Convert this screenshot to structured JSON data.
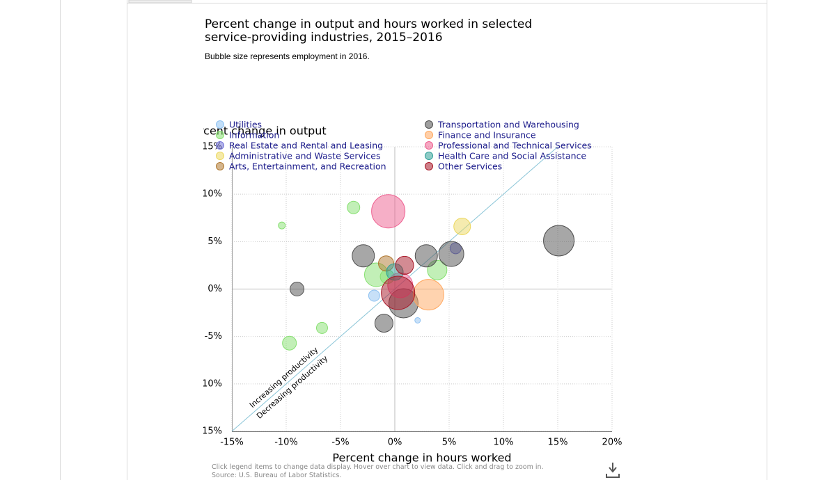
{
  "chart_data": {
    "type": "bubble",
    "title": "Percent change in output and hours worked in selected service-providing industries, 2015–2016",
    "subtitle": "Bubble size represents employment in 2016.",
    "x_label": "Percent change in hours worked",
    "y_label": "Percent change in output",
    "annotations": [
      "Increasing productivity",
      "Decreasing productivity"
    ],
    "note": "Click legend items to change data display. Hover over chart to view data. Click and drag to zoom in.",
    "source": "Source: U.S. Bureau of Labor Statistics.",
    "xlim": [
      -15,
      20
    ],
    "xticks": [
      {
        "value": -15,
        "label": "-15%"
      },
      {
        "value": -10,
        "label": "-10%"
      },
      {
        "value": -5,
        "label": "-5%"
      },
      {
        "value": 0,
        "label": "0%"
      },
      {
        "value": 5,
        "label": "5%"
      },
      {
        "value": 10,
        "label": "10%"
      },
      {
        "value": 15,
        "label": "15%"
      },
      {
        "value": 20,
        "label": "20%"
      }
    ],
    "ylim": [
      -15,
      15
    ],
    "yticks": [
      {
        "value": -15,
        "label": "-15%"
      },
      {
        "value": -10,
        "label": "-10%"
      },
      {
        "value": -5,
        "label": "-5%"
      },
      {
        "value": 0,
        "label": "0%"
      },
      {
        "value": 5,
        "label": "5%"
      },
      {
        "value": 10,
        "label": "10%"
      },
      {
        "value": 15,
        "label": "15%"
      }
    ],
    "grid": true,
    "series": [
      {
        "name": "Utilities",
        "color": "#8fc2f2",
        "x": [
          -1.9,
          2.1
        ],
        "values": [
          -0.7,
          -3.3
        ],
        "sizes": [
          320,
          80
        ]
      },
      {
        "name": "Information",
        "color": "#86e070",
        "x": [
          -10.4,
          -3.8,
          -6.7,
          -9.7,
          -1.7,
          3.9,
          -0.7
        ],
        "values": [
          6.7,
          8.6,
          -4.1,
          -5.7,
          1.5,
          2.0,
          1.3
        ],
        "sizes": [
          125,
          405,
          320,
          500,
          1445,
          980,
          500
        ]
      },
      {
        "name": "Real Estate and Rental and Leasing",
        "color": "#7474d8",
        "x": [
          5.6
        ],
        "values": [
          4.3
        ],
        "sizes": [
          320
        ]
      },
      {
        "name": "Administrative and Waste Services",
        "color": "#ecd860",
        "x": [
          6.2
        ],
        "values": [
          6.6
        ],
        "sizes": [
          720
        ]
      },
      {
        "name": "Arts, Entertainment, and Recreation",
        "color": "#b07830",
        "x": [
          -0.8
        ],
        "values": [
          2.7
        ],
        "sizes": [
          605
        ]
      },
      {
        "name": "Transportation and Warehousing",
        "color": "#505050",
        "x": [
          -9.0,
          -2.9,
          2.9,
          5.2,
          15.1,
          -1.0,
          0.8
        ],
        "values": [
          0.0,
          3.5,
          3.5,
          3.7,
          5.1,
          -3.6,
          -1.5
        ],
        "sizes": [
          500,
          1280,
          1280,
          1620,
          2420,
          845,
          2205
        ]
      },
      {
        "name": "Finance and Insurance",
        "color": "#ffa860",
        "x": [
          3.1
        ],
        "values": [
          -0.6
        ],
        "sizes": [
          2420
        ]
      },
      {
        "name": "Professional and Technical Services",
        "color": "#ee6090",
        "x": [
          -0.6,
          0.5
        ],
        "values": [
          8.2,
          0.4
        ],
        "sizes": [
          2880,
          1620
        ]
      },
      {
        "name": "Health Care and Social Assistance",
        "color": "#30a098",
        "x": [
          0.0
        ],
        "values": [
          1.8
        ],
        "sizes": [
          720
        ]
      },
      {
        "name": "Other Services",
        "color": "#a81828",
        "x": [
          0.9,
          0.3
        ],
        "values": [
          2.5,
          -0.4
        ],
        "sizes": [
          845,
          2880
        ]
      }
    ]
  }
}
